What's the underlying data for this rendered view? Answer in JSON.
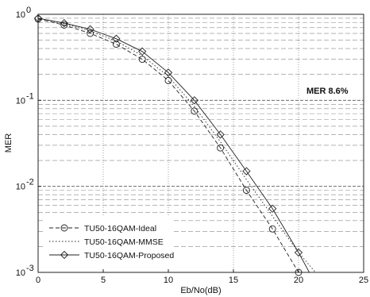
{
  "chart_data": {
    "type": "line",
    "xlabel": "Eb/No(dB)",
    "ylabel": "MER",
    "xlim": [
      0,
      25
    ],
    "ylim": [
      0.001,
      1
    ],
    "y_scale": "log",
    "grid": true,
    "legend_position": "bottom-left",
    "x_ticks": [
      0,
      5,
      10,
      15,
      20,
      25
    ],
    "x_tick_labels": [
      "0",
      "5",
      "10",
      "15",
      "20",
      "25"
    ],
    "y_ticks": [
      1,
      0.1,
      0.01,
      0.001
    ],
    "y_tick_labels": [
      "10",
      "10",
      "10",
      "10"
    ],
    "y_tick_exponents": [
      "0",
      "-1",
      "-2",
      "-3"
    ],
    "annotation": "MER 8.6%",
    "series": [
      {
        "name": "TU50-16QAM-Ideal",
        "marker": "circle",
        "dash": "dashed",
        "x": [
          0,
          2,
          4,
          6,
          8,
          10,
          12,
          14,
          16,
          18,
          20,
          21
        ],
        "y": [
          0.88,
          0.75,
          0.6,
          0.45,
          0.3,
          0.17,
          0.075,
          0.028,
          0.009,
          0.0032,
          0.001,
          0.00065
        ]
      },
      {
        "name": "TU50-16QAM-MMSE",
        "marker": "none",
        "dash": "dotted",
        "x": [
          0,
          2,
          4,
          6,
          8,
          10,
          12,
          14,
          16,
          18,
          20,
          22
        ],
        "y": [
          0.9,
          0.78,
          0.64,
          0.49,
          0.33,
          0.19,
          0.085,
          0.033,
          0.012,
          0.0045,
          0.0017,
          0.00075
        ]
      },
      {
        "name": "TU50-16QAM-Proposed",
        "marker": "diamond",
        "dash": "solid",
        "x": [
          0,
          2,
          4,
          6,
          8,
          10,
          12,
          14,
          16,
          18,
          20,
          21.5
        ],
        "y": [
          0.9,
          0.79,
          0.67,
          0.52,
          0.37,
          0.21,
          0.1,
          0.04,
          0.015,
          0.0055,
          0.0017,
          0.00065
        ]
      }
    ]
  }
}
